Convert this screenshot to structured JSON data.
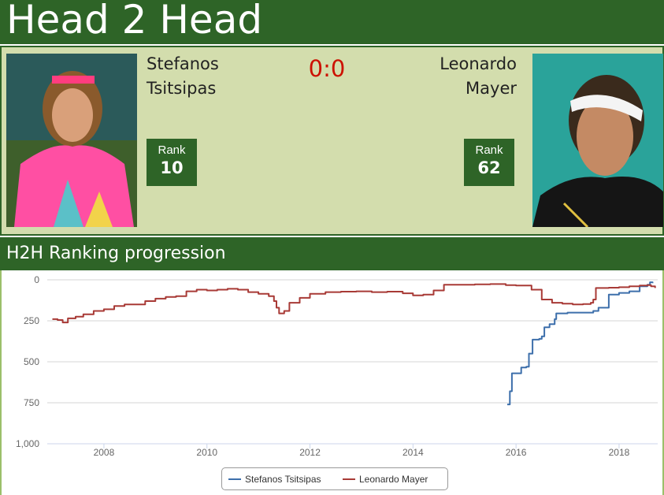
{
  "page_title": "Head 2 Head",
  "score": "0:0",
  "players": [
    {
      "first": "Stefanos",
      "last": "Tsitsipas",
      "rank_label": "Rank",
      "rank": "10"
    },
    {
      "first": "Leonardo",
      "last": "Mayer",
      "rank_label": "Rank",
      "rank": "62"
    }
  ],
  "section_title": "H2H Ranking progression",
  "colors": {
    "brand": "#2e6427",
    "card_bg": "#d3ddad",
    "score": "#cc1100",
    "tsitsipas": "#3d6fab",
    "mayer": "#a83a36"
  },
  "chart_data": {
    "type": "line",
    "title": "",
    "xlabel": "",
    "ylabel": "",
    "x_ticks": [
      "2008",
      "2010",
      "2012",
      "2014",
      "2016",
      "2018"
    ],
    "y_ticks": [
      "0",
      "250",
      "500",
      "750",
      "1,000"
    ],
    "xlim": [
      2006.9,
      2018.75
    ],
    "ylim": [
      0,
      1000
    ],
    "y_reversed": true,
    "grid": true,
    "legend_position": "bottom-center",
    "series": [
      {
        "name": "Stefanos Tsitsipas",
        "color": "#3d6fab",
        "points": [
          [
            2015.83,
            760
          ],
          [
            2015.88,
            755
          ],
          [
            2015.88,
            680
          ],
          [
            2015.92,
            670
          ],
          [
            2015.92,
            570
          ],
          [
            2016.05,
            570
          ],
          [
            2016.1,
            535
          ],
          [
            2016.2,
            530
          ],
          [
            2016.25,
            450
          ],
          [
            2016.32,
            430
          ],
          [
            2016.32,
            365
          ],
          [
            2016.45,
            360
          ],
          [
            2016.5,
            345
          ],
          [
            2016.55,
            290
          ],
          [
            2016.65,
            270
          ],
          [
            2016.75,
            240
          ],
          [
            2016.78,
            205
          ],
          [
            2017.0,
            200
          ],
          [
            2017.3,
            200
          ],
          [
            2017.5,
            190
          ],
          [
            2017.6,
            170
          ],
          [
            2017.8,
            90
          ],
          [
            2018.0,
            80
          ],
          [
            2018.2,
            70
          ],
          [
            2018.4,
            40
          ],
          [
            2018.55,
            30
          ],
          [
            2018.6,
            15
          ],
          [
            2018.65,
            20
          ]
        ]
      },
      {
        "name": "Leonardo Mayer",
        "color": "#a83a36",
        "points": [
          [
            2007.0,
            240
          ],
          [
            2007.1,
            245
          ],
          [
            2007.2,
            260
          ],
          [
            2007.3,
            235
          ],
          [
            2007.45,
            225
          ],
          [
            2007.6,
            210
          ],
          [
            2007.8,
            190
          ],
          [
            2008.0,
            180
          ],
          [
            2008.2,
            160
          ],
          [
            2008.4,
            150
          ],
          [
            2008.6,
            150
          ],
          [
            2008.8,
            130
          ],
          [
            2009.0,
            115
          ],
          [
            2009.2,
            105
          ],
          [
            2009.4,
            100
          ],
          [
            2009.6,
            70
          ],
          [
            2009.8,
            60
          ],
          [
            2010.0,
            65
          ],
          [
            2010.2,
            60
          ],
          [
            2010.4,
            55
          ],
          [
            2010.6,
            60
          ],
          [
            2010.8,
            75
          ],
          [
            2011.0,
            85
          ],
          [
            2011.2,
            100
          ],
          [
            2011.3,
            130
          ],
          [
            2011.35,
            170
          ],
          [
            2011.4,
            205
          ],
          [
            2011.5,
            190
          ],
          [
            2011.6,
            140
          ],
          [
            2011.8,
            110
          ],
          [
            2012.0,
            85
          ],
          [
            2012.3,
            75
          ],
          [
            2012.6,
            72
          ],
          [
            2012.9,
            70
          ],
          [
            2013.2,
            75
          ],
          [
            2013.5,
            72
          ],
          [
            2013.8,
            82
          ],
          [
            2014.0,
            95
          ],
          [
            2014.2,
            90
          ],
          [
            2014.4,
            65
          ],
          [
            2014.6,
            30
          ],
          [
            2014.9,
            30
          ],
          [
            2015.2,
            28
          ],
          [
            2015.5,
            26
          ],
          [
            2015.8,
            32
          ],
          [
            2016.0,
            35
          ],
          [
            2016.3,
            60
          ],
          [
            2016.5,
            120
          ],
          [
            2016.7,
            140
          ],
          [
            2016.9,
            145
          ],
          [
            2017.1,
            150
          ],
          [
            2017.3,
            148
          ],
          [
            2017.45,
            140
          ],
          [
            2017.5,
            120
          ],
          [
            2017.55,
            50
          ],
          [
            2017.8,
            48
          ],
          [
            2018.0,
            45
          ],
          [
            2018.2,
            40
          ],
          [
            2018.4,
            35
          ],
          [
            2018.55,
            32
          ],
          [
            2018.62,
            40
          ],
          [
            2018.7,
            50
          ]
        ]
      }
    ]
  }
}
